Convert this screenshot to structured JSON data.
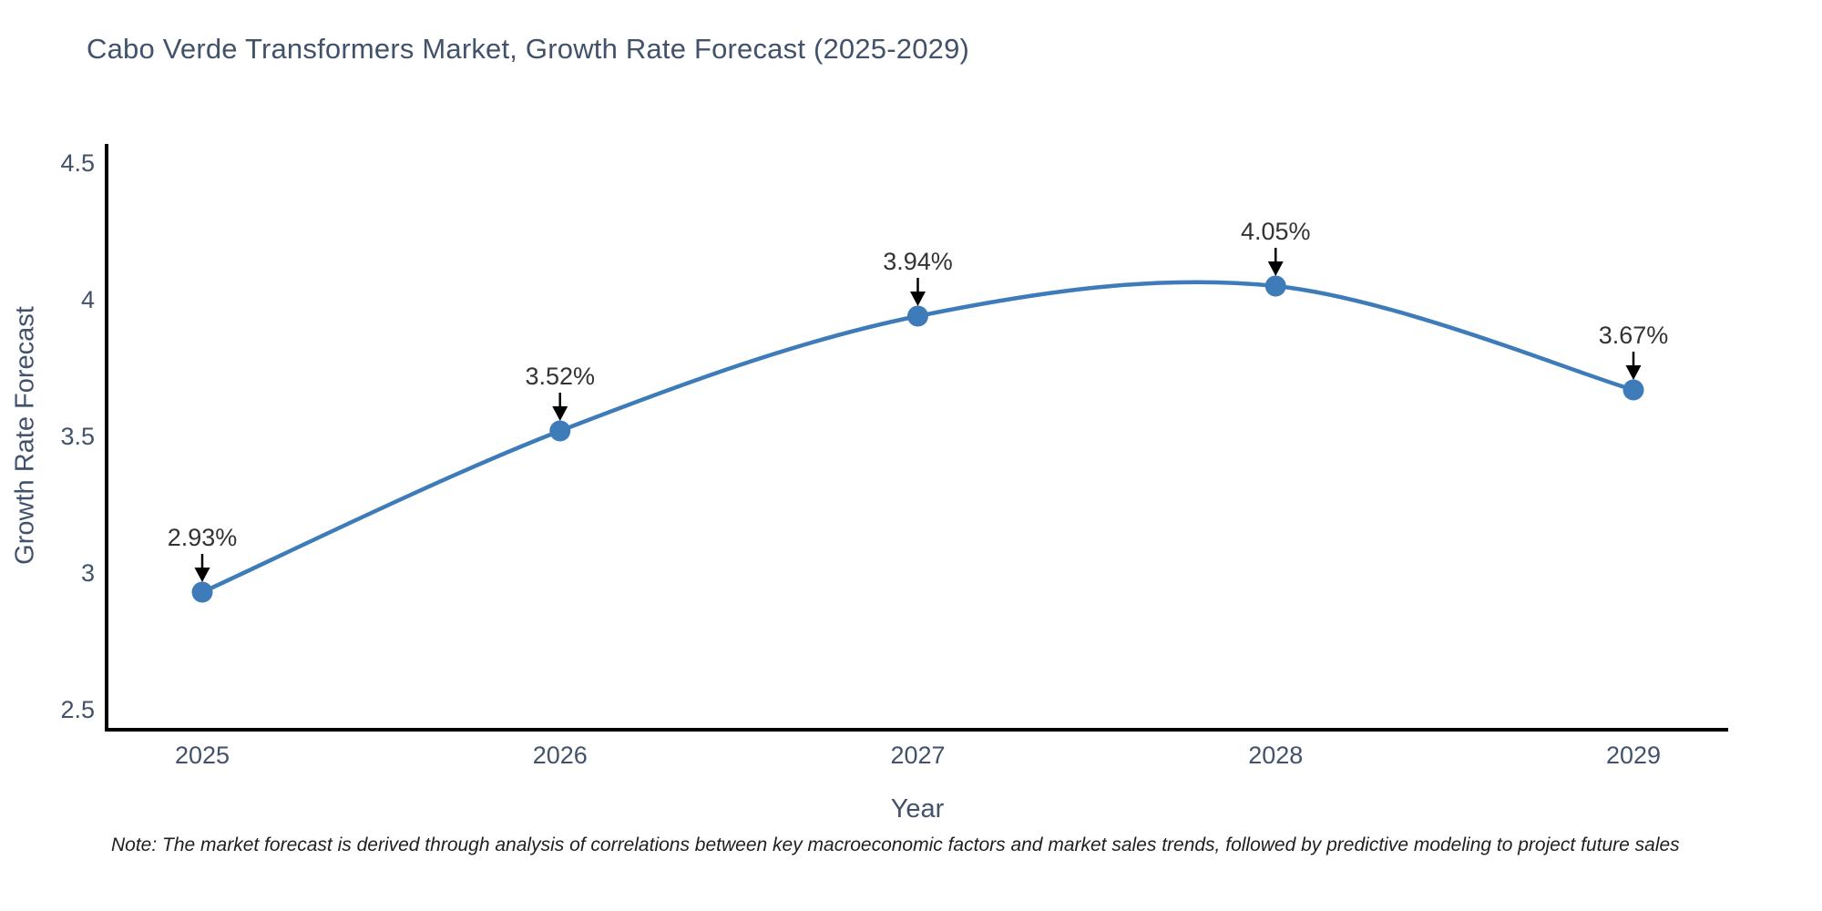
{
  "chart_data": {
    "type": "line",
    "line_shape": "spline",
    "title": "Cabo Verde Transformers Market, Growth Rate Forecast (2025-2029)",
    "xlabel": "Year",
    "ylabel": "Growth Rate Forecast",
    "x": [
      2025,
      2026,
      2027,
      2028,
      2029
    ],
    "values": [
      2.93,
      3.52,
      3.94,
      4.05,
      3.67
    ],
    "point_labels": [
      "2.93%",
      "3.52%",
      "3.94%",
      "4.05%",
      "3.67%"
    ],
    "yticks": [
      4.5,
      4,
      3.5,
      3,
      2.5
    ],
    "ylim": [
      2.43,
      4.57
    ],
    "grid": false,
    "legend_position": "none",
    "note": "Note: The market forecast is derived through analysis of correlations between key macroeconomic factors and market sales trends, followed by predictive modeling to project future sales",
    "colors": {
      "line": "#3d7cb8",
      "marker": "#3d7cb8",
      "text": "#42526b",
      "annotation_text": "#333333",
      "arrow": "#000000",
      "axis": "#000000",
      "note_text": "#1f1f1f",
      "background": "#ffffff"
    }
  }
}
